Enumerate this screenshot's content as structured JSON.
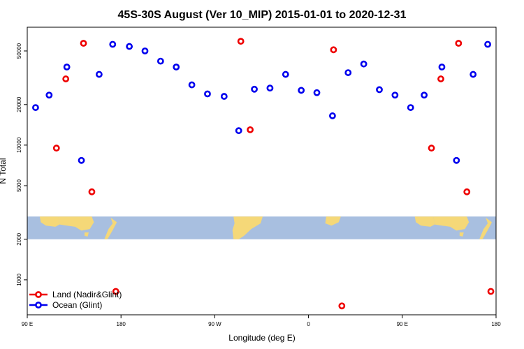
{
  "chart_data": {
    "type": "scatter",
    "title": "45S-30S August (Ver 10_MIP)   2015-01-01 to 2020-12-31",
    "xlabel": "Longitude (deg E)",
    "ylabel": "N Total",
    "x_ticks": [
      {
        "x": 0,
        "label": "90 E"
      },
      {
        "x": 90,
        "label": "180"
      },
      {
        "x": 180,
        "label": "90 W"
      },
      {
        "x": 270,
        "label": "0"
      },
      {
        "x": 360,
        "label": "90 E"
      },
      {
        "x": 450,
        "label": "180"
      }
    ],
    "xlim": [
      0,
      450
    ],
    "y_scale": "log",
    "ylim": [
      550,
      75000
    ],
    "y_ticks": [
      {
        "y": 1000,
        "label": "1000"
      },
      {
        "y": 2000,
        "label": "2000"
      },
      {
        "y": 5000,
        "label": "5000"
      },
      {
        "y": 10000,
        "label": "10000"
      },
      {
        "y": 20000,
        "label": "20000"
      },
      {
        "y": 50000,
        "label": "50000"
      }
    ],
    "map_strip": {
      "ymin": 2000,
      "ymax": 2950,
      "ocean_color": "#a8bfe0",
      "land_color": "#f5d878"
    },
    "legend": {
      "position": "bottom-left",
      "entries": [
        {
          "label": "Land (Nadir&Glint)",
          "color": "#ee0000"
        },
        {
          "label": "Ocean (Glint)",
          "color": "#0000ee"
        }
      ]
    },
    "series": [
      {
        "name": "Land (Nadir&Glint)",
        "color": "#ee0000",
        "points": [
          {
            "x": 28,
            "y": 9500
          },
          {
            "x": 37,
            "y": 31000
          },
          {
            "x": 54,
            "y": 57000
          },
          {
            "x": 62,
            "y": 4500
          },
          {
            "x": 85,
            "y": 820
          },
          {
            "x": 205,
            "y": 59000
          },
          {
            "x": 214,
            "y": 13000
          },
          {
            "x": 294,
            "y": 51000
          },
          {
            "x": 302,
            "y": 640
          },
          {
            "x": 388,
            "y": 9500
          },
          {
            "x": 397,
            "y": 31000
          },
          {
            "x": 414,
            "y": 57000
          },
          {
            "x": 422,
            "y": 4500
          },
          {
            "x": 445,
            "y": 820
          }
        ]
      },
      {
        "name": "Ocean (Glint)",
        "color": "#0000ee",
        "points": [
          {
            "x": 8,
            "y": 19000
          },
          {
            "x": 21,
            "y": 23500
          },
          {
            "x": 38,
            "y": 38000
          },
          {
            "x": 52,
            "y": 7700
          },
          {
            "x": 69,
            "y": 33500
          },
          {
            "x": 82,
            "y": 56000
          },
          {
            "x": 98,
            "y": 54000
          },
          {
            "x": 113,
            "y": 50000
          },
          {
            "x": 128,
            "y": 42000
          },
          {
            "x": 143,
            "y": 38000
          },
          {
            "x": 158,
            "y": 28000
          },
          {
            "x": 173,
            "y": 24000
          },
          {
            "x": 189,
            "y": 23000
          },
          {
            "x": 203,
            "y": 12800
          },
          {
            "x": 218,
            "y": 26000
          },
          {
            "x": 233,
            "y": 26500
          },
          {
            "x": 248,
            "y": 33500
          },
          {
            "x": 263,
            "y": 25500
          },
          {
            "x": 278,
            "y": 24500
          },
          {
            "x": 293,
            "y": 16500
          },
          {
            "x": 308,
            "y": 34500
          },
          {
            "x": 323,
            "y": 40000
          },
          {
            "x": 338,
            "y": 25800
          },
          {
            "x": 353,
            "y": 23500
          },
          {
            "x": 368,
            "y": 19000
          },
          {
            "x": 381,
            "y": 23500
          },
          {
            "x": 398,
            "y": 38000
          },
          {
            "x": 412,
            "y": 7700
          },
          {
            "x": 428,
            "y": 33500
          },
          {
            "x": 442,
            "y": 56000
          }
        ]
      }
    ]
  }
}
